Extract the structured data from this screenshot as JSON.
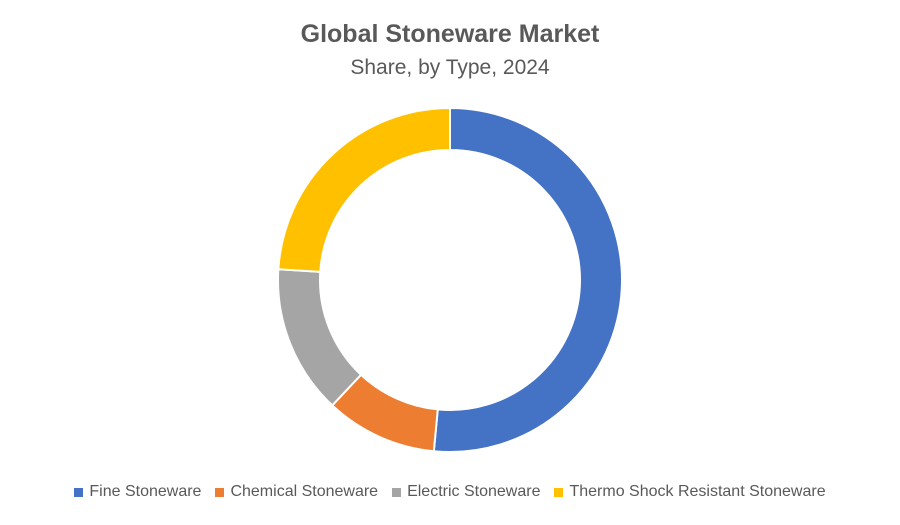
{
  "chart_data": {
    "type": "pie",
    "variant": "donut",
    "title": "Global Stoneware Market",
    "subtitle": "Share, by Type, 2024",
    "categories": [
      "Fine Stoneware",
      "Chemical Stoneware",
      "Electric Stoneware",
      "Thermo Shock Resistant Stoneware"
    ],
    "values": [
      51.5,
      10.5,
      14.0,
      24.0
    ],
    "colors": [
      "#4472C4",
      "#ED7D31",
      "#A5A5A5",
      "#FFC000"
    ],
    "legend_position": "bottom",
    "start_angle": "top, clockwise"
  }
}
